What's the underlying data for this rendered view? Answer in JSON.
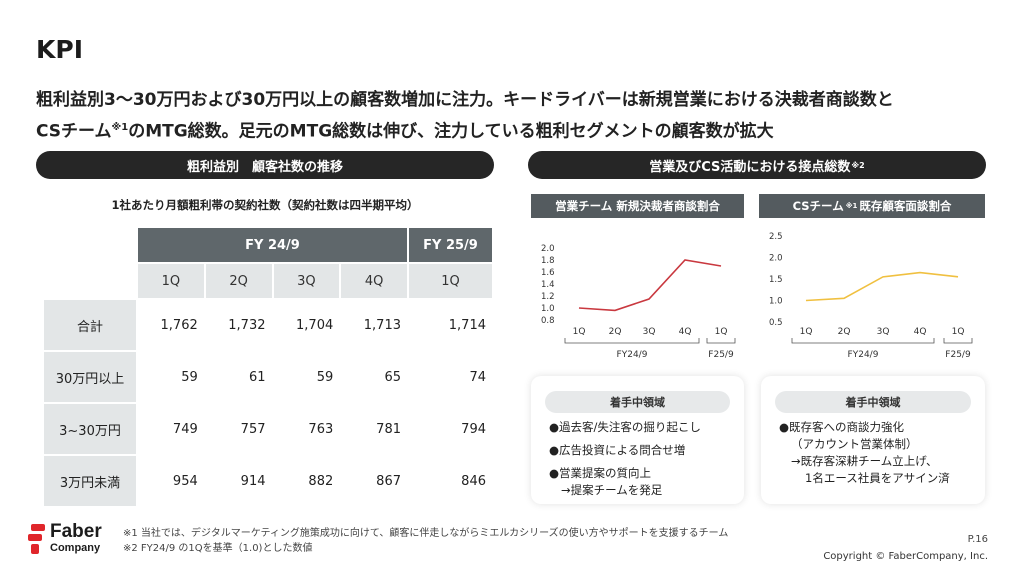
{
  "title": "KPI",
  "lead": {
    "line1": "粗利益別3〜30万円および30万円以上の顧客数増加に注力。キードライバーは新規営業における決裁者商談数と",
    "line2_a": "CSチーム",
    "line2_sup": "※1",
    "line2_b": "のMTG総数。足元のMTG総数は伸び、注力している粗利セグメントの顧客数が拡大"
  },
  "left_section": {
    "header": "粗利益別　顧客社数の推移",
    "subtitle": "1社あたり月額粗利帯の契約社数（契約社数は四半期平均）",
    "fy_headers": [
      "FY 24/9",
      "FY 25/9"
    ],
    "quarters": [
      "1Q",
      "2Q",
      "3Q",
      "4Q",
      "1Q"
    ],
    "rows": [
      {
        "label": "合計",
        "values": [
          "1,762",
          "1,732",
          "1,704",
          "1,713",
          "1,714"
        ]
      },
      {
        "label": "30万円以上",
        "values": [
          "59",
          "61",
          "59",
          "65",
          "74"
        ]
      },
      {
        "label": "3~30万円",
        "values": [
          "749",
          "757",
          "763",
          "781",
          "794"
        ]
      },
      {
        "label": "3万円未満",
        "values": [
          "954",
          "914",
          "882",
          "867",
          "846"
        ]
      }
    ]
  },
  "right_section": {
    "header": "営業及びCS活動における接点総数",
    "header_sup": "※2",
    "sales_tag": "営業チーム 新規決裁者商談割合",
    "cs_tag_a": "CSチーム",
    "cs_tag_sup": "※1",
    "cs_tag_b": "既存顧客面談割合",
    "sales_panel": {
      "title": "着手中領域",
      "items": [
        "●過去客/失注客の掘り起こし",
        "●広告投資による問合せ増",
        "●営業提案の質向上"
      ],
      "sub": "→提案チームを発足"
    },
    "cs_panel": {
      "title": "着手中領域",
      "items": [
        "●既存客への商談力強化"
      ],
      "sub": [
        "（アカウント営業体制）",
        "→既存客深耕チーム立上げ、",
        "1名エース社員をアサイン済"
      ]
    }
  },
  "chart_data": [
    {
      "type": "line",
      "title": "営業チーム 新規決裁者商談割合",
      "categories": [
        "1Q",
        "2Q",
        "3Q",
        "4Q",
        "1Q"
      ],
      "group_labels": [
        "FY24/9",
        "F25/9"
      ],
      "values": [
        1.0,
        0.96,
        1.15,
        1.8,
        1.7
      ],
      "yticks": [
        "2.0",
        "1.8",
        "1.6",
        "1.4",
        "1.2",
        "1.0",
        "0.8"
      ],
      "ylim": [
        0.8,
        2.0
      ],
      "color": "#c9383f"
    },
    {
      "type": "line",
      "title": "CSチーム 既存顧客面談割合",
      "categories": [
        "1Q",
        "2Q",
        "3Q",
        "4Q",
        "1Q"
      ],
      "group_labels": [
        "FY24/9",
        "F25/9"
      ],
      "values": [
        1.0,
        1.05,
        1.55,
        1.65,
        1.55
      ],
      "yticks": [
        "2.5",
        "2.0",
        "1.5",
        "1.0",
        "0.5"
      ],
      "ylim": [
        0.5,
        2.5
      ],
      "color": "#f0c040"
    }
  ],
  "footnotes": [
    "※1 当社では、デジタルマーケティング施策成功に向けて、顧客に伴走しながらミエルカシリーズの使い方やサポートを支援するチーム",
    "※2 FY24/9 の1Qを基準（1.0)とした数値"
  ],
  "page": "P.16",
  "copyright": "Copyright © FaberCompany, Inc.",
  "logo": {
    "word": "Faber",
    "word2": "Company",
    "color": "#e0262b"
  }
}
